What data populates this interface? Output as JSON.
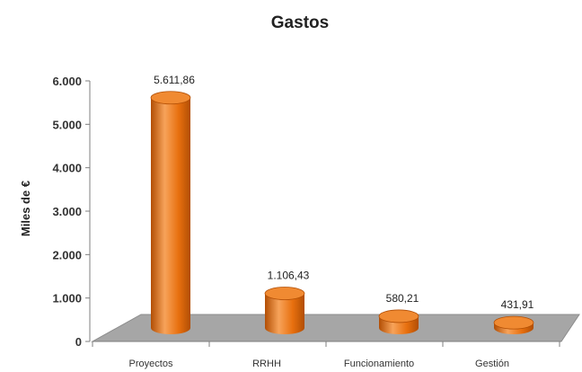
{
  "chart_data": {
    "type": "bar",
    "title": "Gastos",
    "xlabel": "",
    "ylabel": "Miles de €",
    "categories": [
      "Proyectos",
      "RRHH",
      "Funcionamiento",
      "Gestión"
    ],
    "values": [
      5611.86,
      1106.43,
      580.21,
      431.91
    ],
    "data_labels": [
      "5.611,86",
      "1.106,43",
      "580,21",
      "431,91"
    ],
    "yticks": [
      0,
      1000,
      2000,
      3000,
      4000,
      5000,
      6000
    ],
    "ytick_labels": [
      "0",
      "1.000",
      "2.000",
      "3.000",
      "4.000",
      "5.000",
      "6.000"
    ],
    "ylim": [
      0,
      6000
    ],
    "grid": false,
    "legend": "none",
    "bar_style": "3d-cylinder",
    "colors": {
      "bar_light": "#f7a35a",
      "bar_mid": "#e8700f",
      "bar_dark": "#b24e04",
      "bar_top": "#f08a32",
      "floor": "#a6a6a6",
      "floor_edge": "#8c8c8c",
      "axis": "#7f7f7f"
    }
  }
}
